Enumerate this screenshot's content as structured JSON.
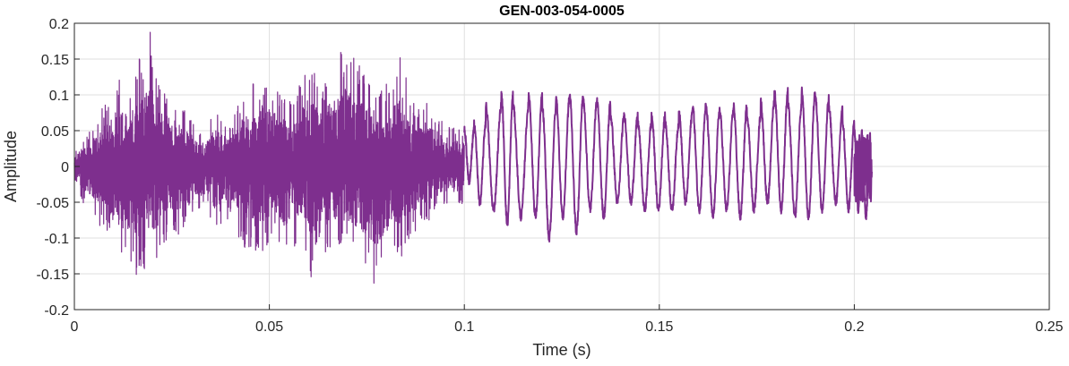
{
  "chart_data": {
    "type": "line",
    "title": "GEN-003-054-0005",
    "xlabel": "Time (s)",
    "ylabel": "Amplitude",
    "xlim": [
      0,
      0.25
    ],
    "ylim": [
      -0.2,
      0.2
    ],
    "x_ticks": [
      0,
      0.05,
      0.1,
      0.15,
      0.2,
      0.25
    ],
    "x_tick_labels": [
      "0",
      "0.05",
      "0.1",
      "0.15",
      "0.2",
      "0.25"
    ],
    "y_ticks": [
      -0.2,
      -0.15,
      -0.1,
      -0.05,
      0,
      0.05,
      0.1,
      0.15,
      0.2
    ],
    "y_tick_labels": [
      "-0.2",
      "-0.15",
      "-0.1",
      "-0.05",
      "0",
      "0.05",
      "0.1",
      "0.15",
      "0.2"
    ],
    "grid": true,
    "line_color": "#7E2F8E",
    "series": [
      {
        "values_comment_free": true,
        "x": [
          0,
          0.002,
          0.004,
          0.006,
          0.008,
          0.01,
          0.012,
          0.014,
          0.016,
          0.018,
          0.0195,
          0.02,
          0.022,
          0.024,
          0.026,
          0.028,
          0.03,
          0.032,
          0.034,
          0.036,
          0.038,
          0.04,
          0.042,
          0.044,
          0.046,
          0.048,
          0.05,
          0.052,
          0.054,
          0.056,
          0.058,
          0.06,
          0.062,
          0.064,
          0.066,
          0.068,
          0.07,
          0.072,
          0.074,
          0.076,
          0.078,
          0.08,
          0.082,
          0.084,
          0.086,
          0.088,
          0.09,
          0.092,
          0.094,
          0.096,
          0.098,
          0.1
        ],
        "y_max": [
          0.02,
          0.04,
          0.05,
          0.07,
          0.09,
          0.12,
          0.13,
          0.1,
          0.15,
          0.16,
          0.2,
          0.14,
          0.12,
          0.11,
          0.1,
          0.08,
          0.07,
          0.05,
          0.06,
          0.08,
          0.07,
          0.06,
          0.09,
          0.11,
          0.12,
          0.1,
          0.13,
          0.11,
          0.1,
          0.09,
          0.12,
          0.15,
          0.13,
          0.12,
          0.14,
          0.16,
          0.17,
          0.15,
          0.14,
          0.13,
          0.11,
          0.12,
          0.13,
          0.16,
          0.1,
          0.09,
          0.1,
          0.08,
          0.07,
          0.06,
          0.06,
          0.05
        ],
        "y_min": [
          -0.03,
          -0.05,
          -0.06,
          -0.08,
          -0.09,
          -0.12,
          -0.13,
          -0.14,
          -0.16,
          -0.15,
          -0.13,
          -0.15,
          -0.12,
          -0.1,
          -0.1,
          -0.09,
          -0.08,
          -0.07,
          -0.06,
          -0.09,
          -0.08,
          -0.07,
          -0.1,
          -0.12,
          -0.13,
          -0.12,
          -0.11,
          -0.1,
          -0.13,
          -0.12,
          -0.1,
          -0.15,
          -0.17,
          -0.13,
          -0.12,
          -0.11,
          -0.12,
          -0.13,
          -0.15,
          -0.16,
          -0.17,
          -0.14,
          -0.12,
          -0.13,
          -0.1,
          -0.09,
          -0.08,
          -0.07,
          -0.06,
          -0.05,
          -0.06,
          -0.05
        ]
      },
      {
        "x": [
          0.1,
          0.1025,
          0.1055,
          0.1095,
          0.1125,
          0.1165,
          0.12,
          0.1235,
          0.127,
          0.1305,
          0.134,
          0.1375,
          0.141,
          0.1445,
          0.148,
          0.1515,
          0.155,
          0.1585,
          0.162,
          0.1655,
          0.169,
          0.1725,
          0.176,
          0.1795,
          0.183,
          0.1865,
          0.19,
          0.1935,
          0.197,
          0.2,
          0.202,
          0.204
        ],
        "y_peak": [
          0.05,
          0.06,
          0.085,
          0.1,
          0.085,
          0.1,
          0.08,
          0.095,
          0.1,
          0.09,
          0.09,
          0.07,
          0.07,
          0.06,
          0.07,
          0.06,
          0.075,
          0.085,
          0.08,
          0.075,
          0.085,
          0.07,
          0.09,
          0.105,
          0.085,
          0.105,
          0.095,
          0.08,
          0.06,
          0.05,
          0.04,
          0.05
        ],
        "y_trough": [
          -0.02,
          -0.05,
          -0.06,
          -0.08,
          -0.07,
          -0.07,
          -0.1,
          -0.07,
          -0.09,
          -0.06,
          -0.07,
          -0.05,
          -0.05,
          -0.06,
          -0.06,
          -0.06,
          -0.05,
          -0.06,
          -0.07,
          -0.06,
          -0.07,
          -0.06,
          -0.05,
          -0.06,
          -0.07,
          -0.07,
          -0.06,
          -0.05,
          -0.06,
          -0.06,
          -0.07,
          -0.09
        ]
      }
    ]
  }
}
